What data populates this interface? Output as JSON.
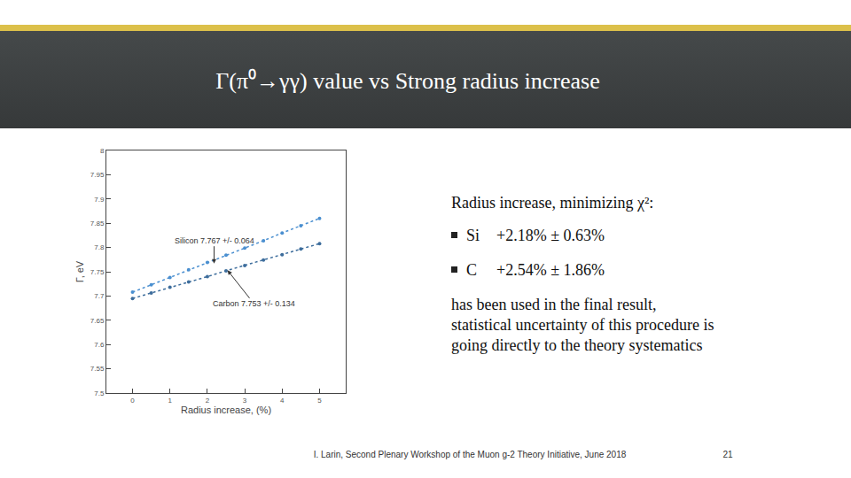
{
  "slide": {
    "title": "Γ(π⁰→γγ) value vs Strong radius increase",
    "text": {
      "intro": "Radius increase, minimizing χ²:",
      "bullets": [
        {
          "label": "Si",
          "value": "+2.18% ± 0.63%"
        },
        {
          "label": "C",
          "value": "+2.54% ± 1.86%"
        }
      ],
      "paragraph": [
        "has been used in the final result,",
        "statistical uncertainty of this procedure is",
        "going directly to the theory systematics"
      ]
    },
    "footer": "I. Larin, Second Plenary Workshop of the Muon g-2 Theory Initiative, June 2018",
    "page": 21
  },
  "chart_data": {
    "type": "scatter",
    "x_label": "Radius increase, (%)",
    "y_label": "Γ, eV",
    "x": [
      0,
      0.5,
      1,
      1.5,
      2,
      2.5,
      3,
      3.5,
      4,
      4.5,
      5
    ],
    "series": [
      {
        "color": "#4a8fd0",
        "marker": "circle",
        "line_style": "dot",
        "values": [
          7.708,
          7.723,
          7.738,
          7.754,
          7.769,
          7.784,
          7.799,
          7.814,
          7.83,
          7.845,
          7.86
        ]
      },
      {
        "color": "#3d6d9c",
        "marker": "circle",
        "line_style": "dot",
        "values": [
          7.695,
          7.706,
          7.718,
          7.729,
          7.74,
          7.752,
          7.763,
          7.774,
          7.785,
          7.797,
          7.808
        ]
      }
    ],
    "annotations": [
      {
        "text": "Silicon 7.767 +/- 0.064",
        "x": 2.18,
        "y": 7.767
      },
      {
        "text": "Carbon 7.753 +/- 0.134",
        "x": 2.54,
        "y": 7.753
      }
    ],
    "xlim": [
      -0.7,
      5.7
    ],
    "ylim": [
      7.5,
      8
    ],
    "xticks": [
      0,
      1,
      2,
      3,
      4,
      5
    ],
    "yticks": [
      7.5,
      7.55,
      7.6,
      7.65,
      7.7,
      7.75,
      7.8,
      7.85,
      7.9,
      7.95,
      8
    ],
    "grid": false
  }
}
